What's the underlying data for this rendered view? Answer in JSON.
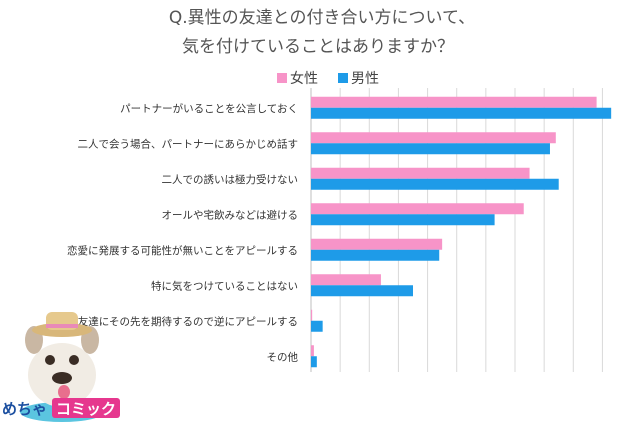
{
  "chart_data": {
    "type": "bar",
    "orientation": "horizontal",
    "title_lines": [
      "Q.異性の友達との付き合い方について、",
      "気を付けていることはありますか？"
    ],
    "categories": [
      "パートナーがいることを公言しておく",
      "二人で会う場合、パートナーにあらかじめ話す",
      "二人での誘いは極力受けない",
      "オールや宅飲みなどは避ける",
      "恋愛に発展する可能性が無いことをアピールする",
      "特に気をつけていることはない",
      "異性の友達にその先を期待するので逆にアピールする",
      "その他"
    ],
    "series": [
      {
        "name": "女性",
        "color": "#f794c8",
        "values": [
          98,
          84,
          75,
          73,
          45,
          24,
          0.4,
          1
        ]
      },
      {
        "name": "男性",
        "color": "#1e9be8",
        "values": [
          103,
          82,
          85,
          63,
          44,
          35,
          4,
          2
        ]
      }
    ],
    "xlim": [
      0,
      105
    ],
    "grid_step": 10,
    "legend_position": "top-center",
    "grid": true
  },
  "branding": {
    "logo_text_left": "めちゃ",
    "logo_text_right": "コミック",
    "logo_color_left": "#1b4fa0",
    "logo_color_right": "#e6378e",
    "mascot": "bulldog-with-hat-icon"
  }
}
